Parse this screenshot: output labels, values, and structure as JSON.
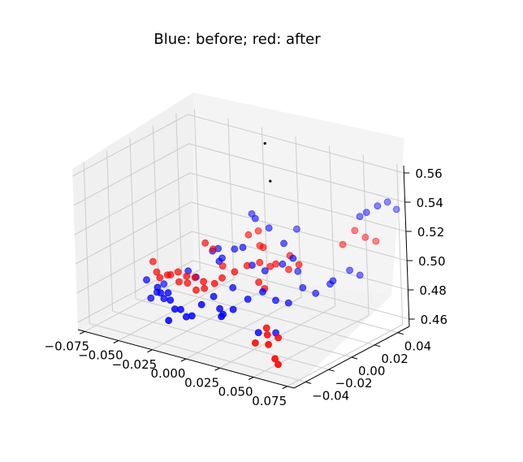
{
  "chart_data": {
    "type": "scatter",
    "title": "Blue: before; red: after",
    "xlabel": "",
    "ylabel": "",
    "zlabel": "",
    "x_ticks": [
      "−0.075",
      "−0.050",
      "−0.025",
      "0.000",
      "0.025",
      "0.050",
      "0.075"
    ],
    "y_ticks": [
      "−0.04",
      "−0.02",
      "0.00",
      "0.02",
      "0.04"
    ],
    "z_ticks": [
      "0.46",
      "0.48",
      "0.50",
      "0.52",
      "0.54",
      "0.56"
    ],
    "grid": true,
    "colors": {
      "before": "#0000ff",
      "after": "#ff0000",
      "extra": "#000000"
    },
    "series": [
      {
        "key": "before",
        "color": "#0000ff",
        "points": [
          [
            -0.066,
            -0.006,
            0.474
          ],
          [
            -0.062,
            0.004,
            0.468
          ],
          [
            -0.058,
            -0.012,
            0.466
          ],
          [
            -0.055,
            -0.01,
            0.47
          ],
          [
            -0.051,
            -0.014,
            0.476
          ],
          [
            -0.047,
            -0.016,
            0.474
          ],
          [
            -0.043,
            -0.018,
            0.472
          ],
          [
            -0.038,
            -0.02,
            0.478
          ],
          [
            -0.033,
            -0.024,
            0.476
          ],
          [
            -0.028,
            -0.026,
            0.472
          ],
          [
            -0.022,
            -0.028,
            0.474
          ],
          [
            -0.018,
            -0.028,
            0.47
          ],
          [
            -0.012,
            -0.03,
            0.473
          ],
          [
            -0.008,
            -0.026,
            0.48
          ],
          [
            -0.004,
            -0.02,
            0.484
          ],
          [
            0.002,
            -0.022,
            0.478
          ],
          [
            0.006,
            -0.024,
            0.476
          ],
          [
            0.012,
            -0.022,
            0.48
          ],
          [
            0.018,
            -0.016,
            0.486
          ],
          [
            0.024,
            -0.01,
            0.49
          ],
          [
            0.03,
            -0.006,
            0.484
          ],
          [
            0.036,
            -0.002,
            0.482
          ],
          [
            0.04,
            0.006,
            0.49
          ],
          [
            0.046,
            0.01,
            0.486
          ],
          [
            0.05,
            0.018,
            0.49
          ],
          [
            0.054,
            0.016,
            0.494
          ],
          [
            0.058,
            0.026,
            0.498
          ],
          [
            0.062,
            0.03,
            0.494
          ],
          [
            0.07,
            0.038,
            0.54
          ],
          [
            0.074,
            0.042,
            0.542
          ],
          [
            0.077,
            0.046,
            0.536
          ],
          [
            0.065,
            0.034,
            0.536
          ],
          [
            0.06,
            0.034,
            0.532
          ],
          [
            -0.012,
            0.024,
            0.52
          ],
          [
            -0.006,
            0.02,
            0.52
          ],
          [
            0.004,
            0.02,
            0.516
          ],
          [
            0.02,
            0.014,
            0.512
          ],
          [
            0.022,
            0.01,
            0.5
          ],
          [
            0.03,
            0.01,
            0.506
          ],
          [
            0.028,
            0.016,
            0.494
          ],
          [
            -0.03,
            0.01,
            0.496
          ],
          [
            -0.024,
            0.008,
            0.5
          ],
          [
            -0.02,
            0.004,
            0.494
          ],
          [
            -0.016,
            0.002,
            0.498
          ],
          [
            -0.01,
            0.006,
            0.504
          ],
          [
            -0.002,
            0.004,
            0.508
          ],
          [
            0.008,
            0.0,
            0.5
          ],
          [
            0.014,
            0.004,
            0.496
          ],
          [
            -0.04,
            0.0,
            0.484
          ],
          [
            -0.036,
            0.002,
            0.48
          ],
          [
            0.01,
            -0.03,
            0.478
          ],
          [
            0.032,
            -0.024,
            0.47
          ],
          [
            0.038,
            -0.016,
            0.468
          ],
          [
            -0.026,
            -0.034,
            0.468
          ],
          [
            0.0,
            -0.008,
            0.486
          ],
          [
            0.016,
            0.03,
            0.514
          ]
        ]
      },
      {
        "key": "after",
        "color": "#ff0000",
        "points": [
          [
            -0.066,
            0.0,
            0.484
          ],
          [
            -0.06,
            -0.004,
            0.48
          ],
          [
            -0.056,
            -0.006,
            0.478
          ],
          [
            -0.052,
            -0.004,
            0.48
          ],
          [
            -0.048,
            -0.006,
            0.482
          ],
          [
            -0.044,
            -0.004,
            0.484
          ],
          [
            -0.04,
            -0.008,
            0.48
          ],
          [
            -0.036,
            -0.006,
            0.484
          ],
          [
            -0.032,
            -0.01,
            0.482
          ],
          [
            -0.028,
            -0.008,
            0.486
          ],
          [
            -0.024,
            -0.012,
            0.48
          ],
          [
            -0.02,
            -0.01,
            0.486
          ],
          [
            -0.016,
            -0.014,
            0.484
          ],
          [
            -0.01,
            -0.012,
            0.488
          ],
          [
            -0.006,
            -0.01,
            0.492
          ],
          [
            0.0,
            -0.006,
            0.496
          ],
          [
            0.006,
            -0.002,
            0.5
          ],
          [
            0.012,
            0.002,
            0.502
          ],
          [
            0.018,
            0.004,
            0.5
          ],
          [
            0.024,
            0.002,
            0.504
          ],
          [
            0.03,
            0.006,
            0.5
          ],
          [
            0.036,
            0.008,
            0.504
          ],
          [
            0.04,
            -0.026,
            0.476
          ],
          [
            0.044,
            -0.03,
            0.474
          ],
          [
            0.048,
            -0.034,
            0.47
          ],
          [
            0.052,
            -0.03,
            0.474
          ],
          [
            0.056,
            -0.038,
            0.464
          ],
          [
            0.06,
            -0.04,
            0.462
          ],
          [
            0.04,
            -0.036,
            0.47
          ],
          [
            0.054,
            0.036,
            0.52
          ],
          [
            0.06,
            0.038,
            0.516
          ],
          [
            0.066,
            0.04,
            0.514
          ],
          [
            0.05,
            0.03,
            0.512
          ],
          [
            -0.004,
            0.02,
            0.512
          ],
          [
            -0.008,
            0.016,
            0.51
          ],
          [
            0.002,
            0.014,
            0.506
          ],
          [
            -0.03,
            0.004,
            0.504
          ],
          [
            -0.026,
            0.006,
            0.5
          ],
          [
            0.016,
            -0.004,
            0.492
          ],
          [
            0.022,
            -0.006,
            0.49
          ],
          [
            0.026,
            0.012,
            0.506
          ],
          [
            -0.014,
            0.0,
            0.494
          ],
          [
            0.008,
            0.01,
            0.508
          ]
        ]
      },
      {
        "key": "extra",
        "color": "#000000",
        "points": [
          [
            0.005,
            0.018,
            0.575
          ],
          [
            0.015,
            0.01,
            0.555
          ]
        ]
      }
    ]
  }
}
